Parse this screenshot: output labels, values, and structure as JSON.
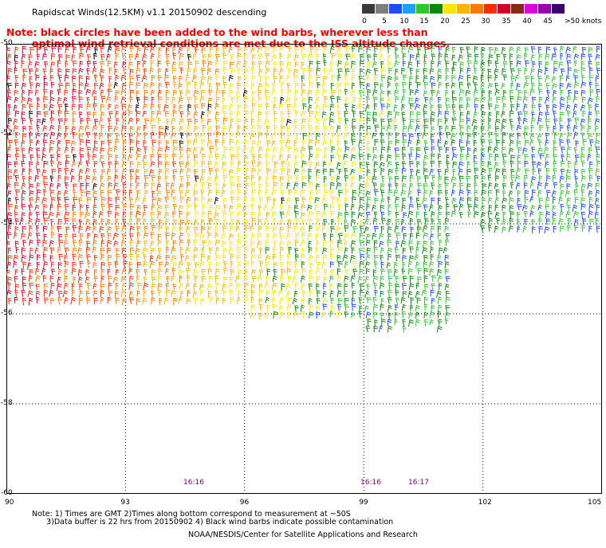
{
  "title": "Rapidscat Winds(12.5KM) v1.1 20150902 descending",
  "note_line1": "Note: black circles have been added to the wind barbs, wherever less than",
  "note_line2": "optimal wind retrieval conditions are met due to the ISS altitude changes.",
  "legend": {
    "colors": [
      "#3a3a3a",
      "#7f7f7f",
      "#1e4bff",
      "#1aa0ff",
      "#2ec82e",
      "#0a8a0a",
      "#ffe600",
      "#ffb400",
      "#ff7a00",
      "#ff2a00",
      "#d4002a",
      "#8b2a0a",
      "#e000e0",
      "#9a00b0",
      "#3c006e"
    ],
    "labels": [
      "0",
      "5",
      "10",
      "15",
      "20",
      "25",
      "30",
      "35",
      "40",
      "45",
      ">50 knots"
    ]
  },
  "map": {
    "lon_range": [
      90,
      105
    ],
    "lat_range": [
      -60,
      -50
    ],
    "lon_ticks": [
      "90",
      "93",
      "96",
      "99",
      "102",
      "105"
    ],
    "lat_ticks": [
      "-50",
      "-52",
      "-54",
      "-56",
      "-58",
      "-60"
    ],
    "times": [
      "16:16",
      "16:16",
      "16:17"
    ]
  },
  "footnote_line1": "Note: 1) Times are GMT 2)Times along bottom correspond to measurement at ~50S",
  "footnote_line2": "      3)Data buffer is 22 hrs from 20150902 4) Black wind barbs indicate possible contamination",
  "credit": "NOAA/NESDIS/Center for Satellite Applications and Research"
}
